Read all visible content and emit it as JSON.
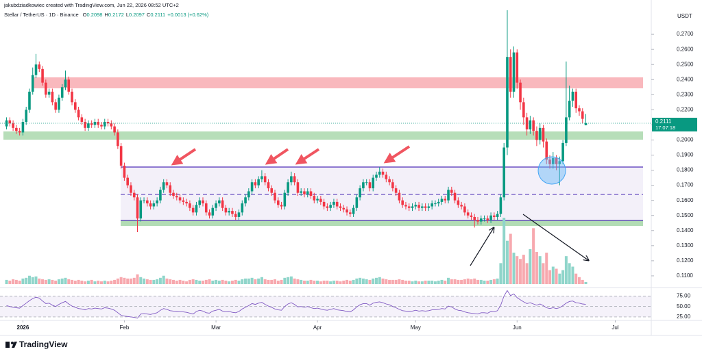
{
  "header": {
    "credit": "jakubdziadkowiec created with TradingView.com, Jun 22, 2026 08:52 UTC+2",
    "symbol": "Stellar / TetherUS · 1D · Binance",
    "ohlc_labels": [
      "O",
      "H",
      "L",
      "C"
    ],
    "change": "+0.0013 (+0.62%)"
  },
  "footer": {
    "brand": "TradingView"
  },
  "chart_data": {
    "type": "candlestick",
    "currency": "USDT",
    "countdown": "17:07:18",
    "up_color": "#089981",
    "down_color": "#f23645",
    "volume_up_color": "#8fd5ca",
    "volume_down_color": "#f7a8ae",
    "rsi_color": "#7e57c2",
    "xlim": [
      -2,
      197
    ],
    "xticks": [
      {
        "value": 5,
        "label": "2026"
      },
      {
        "value": 36,
        "label": "Feb"
      },
      {
        "value": 64,
        "label": "Mar"
      },
      {
        "value": 95,
        "label": "Apr"
      },
      {
        "value": 125,
        "label": "May"
      },
      {
        "value": 156,
        "label": "Jun"
      },
      {
        "value": 186,
        "label": "Jul"
      }
    ],
    "ylim": [
      0.1,
      0.29
    ],
    "yticks": [
      {
        "value": 0.11,
        "label": "0.1100"
      },
      {
        "value": 0.12,
        "label": "0.1200"
      },
      {
        "value": 0.13,
        "label": "0.1300"
      },
      {
        "value": 0.14,
        "label": "0.1400"
      },
      {
        "value": 0.15,
        "label": "0.1500"
      },
      {
        "value": 0.16,
        "label": "0.1600"
      },
      {
        "value": 0.17,
        "label": "0.1700"
      },
      {
        "value": 0.18,
        "label": "0.1800"
      },
      {
        "value": 0.19,
        "label": "0.1900"
      },
      {
        "value": 0.2,
        "label": "0.2000"
      },
      {
        "value": 0.21,
        "label": "0.2100"
      },
      {
        "value": 0.22,
        "label": "0.2200"
      },
      {
        "value": 0.23,
        "label": "0.2300"
      },
      {
        "value": 0.24,
        "label": "0.2400"
      },
      {
        "value": 0.25,
        "label": "0.2500"
      },
      {
        "value": 0.26,
        "label": "0.2600"
      },
      {
        "value": 0.27,
        "label": "0.2700"
      }
    ],
    "rsi_ylim": [
      20,
      92
    ],
    "rsi_ticks": [
      {
        "value": 75,
        "label": "75.00"
      },
      {
        "value": 50,
        "label": "50.00"
      },
      {
        "value": 25,
        "label": "25.00"
      }
    ],
    "open": [
      0.209,
      0.213,
      0.211,
      0.208,
      0.206,
      0.205,
      0.212,
      0.22,
      0.232,
      0.243,
      0.25,
      0.247,
      0.238,
      0.23,
      0.232,
      0.225,
      0.22,
      0.228,
      0.235,
      0.24,
      0.232,
      0.225,
      0.22,
      0.215,
      0.212,
      0.208,
      0.211,
      0.21,
      0.212,
      0.21,
      0.209,
      0.212,
      0.211,
      0.209,
      0.205,
      0.196,
      0.183,
      0.175,
      0.17,
      0.165,
      0.162,
      0.148,
      0.16,
      0.16,
      0.158,
      0.156,
      0.158,
      0.16,
      0.167,
      0.172,
      0.17,
      0.165,
      0.163,
      0.162,
      0.16,
      0.159,
      0.158,
      0.155,
      0.152,
      0.157,
      0.16,
      0.158,
      0.152,
      0.15,
      0.155,
      0.158,
      0.16,
      0.155,
      0.152,
      0.153,
      0.151,
      0.149,
      0.152,
      0.158,
      0.162,
      0.166,
      0.172,
      0.17,
      0.174,
      0.176,
      0.172,
      0.168,
      0.165,
      0.16,
      0.157,
      0.156,
      0.165,
      0.172,
      0.176,
      0.172,
      0.165,
      0.166,
      0.164,
      0.166,
      0.163,
      0.16,
      0.161,
      0.159,
      0.156,
      0.155,
      0.157,
      0.159,
      0.156,
      0.155,
      0.154,
      0.152,
      0.151,
      0.155,
      0.162,
      0.168,
      0.172,
      0.172,
      0.168,
      0.175,
      0.177,
      0.179,
      0.177,
      0.174,
      0.172,
      0.168,
      0.165,
      0.16,
      0.157,
      0.156,
      0.155,
      0.156,
      0.157,
      0.155,
      0.156,
      0.155,
      0.156,
      0.158,
      0.158,
      0.159,
      0.161,
      0.16,
      0.167,
      0.165,
      0.16,
      0.157,
      0.156,
      0.152,
      0.15,
      0.149,
      0.147,
      0.146,
      0.148,
      0.148,
      0.147,
      0.15,
      0.149,
      0.151,
      0.162,
      0.195,
      0.255,
      0.232,
      0.258,
      0.238,
      0.225,
      0.215,
      0.207,
      0.213,
      0.206,
      0.2,
      0.208,
      0.199,
      0.187,
      0.184,
      0.188,
      0.184,
      0.186,
      0.198,
      0.215,
      0.226,
      0.232,
      0.221,
      0.219,
      0.2098
    ],
    "high": [
      0.215,
      0.215,
      0.213,
      0.21,
      0.208,
      0.214,
      0.222,
      0.234,
      0.248,
      0.257,
      0.252,
      0.249,
      0.24,
      0.234,
      0.234,
      0.227,
      0.23,
      0.237,
      0.246,
      0.242,
      0.234,
      0.227,
      0.222,
      0.217,
      0.214,
      0.213,
      0.213,
      0.214,
      0.214,
      0.212,
      0.214,
      0.214,
      0.213,
      0.211,
      0.207,
      0.198,
      0.185,
      0.177,
      0.172,
      0.167,
      0.164,
      0.162,
      0.162,
      0.162,
      0.16,
      0.16,
      0.162,
      0.169,
      0.174,
      0.174,
      0.172,
      0.167,
      0.165,
      0.164,
      0.162,
      0.161,
      0.16,
      0.157,
      0.159,
      0.162,
      0.162,
      0.16,
      0.154,
      0.157,
      0.16,
      0.162,
      0.162,
      0.157,
      0.155,
      0.155,
      0.153,
      0.154,
      0.16,
      0.164,
      0.168,
      0.174,
      0.174,
      0.176,
      0.18,
      0.178,
      0.174,
      0.17,
      0.167,
      0.162,
      0.159,
      0.167,
      0.174,
      0.179,
      0.178,
      0.174,
      0.168,
      0.168,
      0.168,
      0.168,
      0.165,
      0.163,
      0.163,
      0.161,
      0.158,
      0.159,
      0.161,
      0.161,
      0.158,
      0.157,
      0.156,
      0.154,
      0.157,
      0.164,
      0.17,
      0.174,
      0.174,
      0.174,
      0.177,
      0.179,
      0.182,
      0.181,
      0.179,
      0.176,
      0.174,
      0.17,
      0.167,
      0.162,
      0.159,
      0.158,
      0.158,
      0.159,
      0.159,
      0.158,
      0.158,
      0.158,
      0.16,
      0.16,
      0.161,
      0.163,
      0.163,
      0.169,
      0.169,
      0.167,
      0.162,
      0.159,
      0.158,
      0.154,
      0.152,
      0.151,
      0.149,
      0.15,
      0.15,
      0.15,
      0.152,
      0.152,
      0.153,
      0.164,
      0.198,
      0.286,
      0.26,
      0.262,
      0.26,
      0.24,
      0.228,
      0.218,
      0.216,
      0.215,
      0.209,
      0.211,
      0.21,
      0.201,
      0.19,
      0.192,
      0.19,
      0.189,
      0.2,
      0.252,
      0.236,
      0.234,
      0.234,
      0.223,
      0.221,
      0.2172
    ],
    "low": [
      0.207,
      0.209,
      0.206,
      0.204,
      0.203,
      0.203,
      0.21,
      0.218,
      0.23,
      0.241,
      0.245,
      0.236,
      0.228,
      0.228,
      0.223,
      0.218,
      0.218,
      0.226,
      0.233,
      0.23,
      0.223,
      0.218,
      0.213,
      0.21,
      0.206,
      0.206,
      0.208,
      0.208,
      0.208,
      0.207,
      0.207,
      0.209,
      0.207,
      0.203,
      0.194,
      0.181,
      0.173,
      0.168,
      0.163,
      0.16,
      0.139,
      0.146,
      0.158,
      0.156,
      0.154,
      0.154,
      0.156,
      0.158,
      0.165,
      0.168,
      0.163,
      0.161,
      0.16,
      0.158,
      0.157,
      0.156,
      0.153,
      0.15,
      0.15,
      0.155,
      0.156,
      0.15,
      0.148,
      0.148,
      0.153,
      0.156,
      0.153,
      0.15,
      0.15,
      0.149,
      0.147,
      0.147,
      0.15,
      0.156,
      0.16,
      0.164,
      0.168,
      0.168,
      0.172,
      0.17,
      0.166,
      0.163,
      0.158,
      0.155,
      0.154,
      0.154,
      0.163,
      0.17,
      0.17,
      0.163,
      0.163,
      0.162,
      0.162,
      0.161,
      0.158,
      0.158,
      0.157,
      0.154,
      0.153,
      0.153,
      0.155,
      0.154,
      0.153,
      0.152,
      0.15,
      0.149,
      0.149,
      0.153,
      0.16,
      0.166,
      0.17,
      0.166,
      0.166,
      0.173,
      0.175,
      0.175,
      0.172,
      0.17,
      0.166,
      0.163,
      0.158,
      0.155,
      0.154,
      0.153,
      0.153,
      0.154,
      0.153,
      0.153,
      0.153,
      0.153,
      0.154,
      0.156,
      0.156,
      0.157,
      0.158,
      0.158,
      0.163,
      0.158,
      0.155,
      0.154,
      0.15,
      0.148,
      0.147,
      0.142,
      0.144,
      0.144,
      0.146,
      0.145,
      0.145,
      0.147,
      0.147,
      0.149,
      0.16,
      0.19,
      0.228,
      0.228,
      0.234,
      0.22,
      0.21,
      0.203,
      0.204,
      0.203,
      0.196,
      0.197,
      0.195,
      0.184,
      0.181,
      0.181,
      0.18,
      0.17,
      0.184,
      0.196,
      0.213,
      0.222,
      0.218,
      0.216,
      0.211,
      0.2097
    ],
    "close": [
      0.213,
      0.211,
      0.208,
      0.206,
      0.205,
      0.212,
      0.22,
      0.232,
      0.243,
      0.25,
      0.247,
      0.238,
      0.23,
      0.232,
      0.225,
      0.22,
      0.228,
      0.235,
      0.24,
      0.232,
      0.225,
      0.22,
      0.215,
      0.212,
      0.208,
      0.211,
      0.21,
      0.212,
      0.21,
      0.209,
      0.212,
      0.211,
      0.209,
      0.205,
      0.196,
      0.183,
      0.175,
      0.17,
      0.165,
      0.162,
      0.148,
      0.16,
      0.16,
      0.158,
      0.156,
      0.158,
      0.16,
      0.167,
      0.172,
      0.17,
      0.165,
      0.163,
      0.162,
      0.16,
      0.159,
      0.158,
      0.155,
      0.152,
      0.157,
      0.16,
      0.158,
      0.152,
      0.15,
      0.155,
      0.158,
      0.16,
      0.155,
      0.152,
      0.153,
      0.151,
      0.149,
      0.152,
      0.158,
      0.162,
      0.166,
      0.172,
      0.17,
      0.174,
      0.176,
      0.172,
      0.168,
      0.165,
      0.16,
      0.157,
      0.156,
      0.165,
      0.172,
      0.176,
      0.172,
      0.165,
      0.166,
      0.164,
      0.166,
      0.163,
      0.16,
      0.161,
      0.159,
      0.156,
      0.155,
      0.157,
      0.159,
      0.156,
      0.155,
      0.154,
      0.152,
      0.151,
      0.155,
      0.162,
      0.168,
      0.172,
      0.172,
      0.168,
      0.175,
      0.177,
      0.179,
      0.177,
      0.174,
      0.172,
      0.168,
      0.165,
      0.16,
      0.157,
      0.156,
      0.155,
      0.156,
      0.157,
      0.155,
      0.156,
      0.155,
      0.156,
      0.158,
      0.158,
      0.159,
      0.161,
      0.16,
      0.167,
      0.165,
      0.16,
      0.157,
      0.156,
      0.152,
      0.15,
      0.149,
      0.147,
      0.146,
      0.148,
      0.148,
      0.147,
      0.15,
      0.149,
      0.151,
      0.162,
      0.195,
      0.255,
      0.232,
      0.258,
      0.238,
      0.225,
      0.215,
      0.207,
      0.213,
      0.206,
      0.2,
      0.208,
      0.199,
      0.187,
      0.184,
      0.188,
      0.184,
      0.186,
      0.198,
      0.215,
      0.226,
      0.232,
      0.221,
      0.219,
      0.214,
      0.2111
    ],
    "volume": [
      6,
      5,
      7,
      6,
      5,
      8,
      9,
      12,
      10,
      11,
      8,
      7,
      6,
      7,
      6,
      5,
      7,
      8,
      9,
      7,
      6,
      5,
      6,
      5,
      4,
      5,
      6,
      4,
      5,
      4,
      5,
      4,
      5,
      6,
      8,
      10,
      9,
      8,
      8,
      9,
      14,
      10,
      8,
      7,
      6,
      6,
      7,
      9,
      12,
      8,
      7,
      6,
      5,
      6,
      5,
      4,
      6,
      7,
      6,
      5,
      5,
      6,
      7,
      5,
      6,
      5,
      6,
      5,
      4,
      5,
      6,
      5,
      7,
      8,
      8,
      9,
      7,
      8,
      10,
      7,
      6,
      6,
      7,
      5,
      6,
      9,
      10,
      11,
      8,
      7,
      6,
      5,
      5,
      6,
      5,
      5,
      4,
      5,
      5,
      4,
      5,
      5,
      4,
      5,
      6,
      5,
      6,
      8,
      9,
      8,
      7,
      6,
      8,
      9,
      10,
      8,
      7,
      6,
      6,
      6,
      7,
      6,
      5,
      5,
      4,
      5,
      4,
      4,
      5,
      5,
      5,
      4,
      5,
      6,
      5,
      9,
      7,
      7,
      6,
      6,
      7,
      8,
      7,
      8,
      6,
      6,
      5,
      5,
      6,
      7,
      8,
      30,
      95,
      62,
      72,
      45,
      40,
      36,
      42,
      30,
      50,
      80,
      46,
      40,
      30,
      45,
      20,
      25,
      22,
      15,
      20,
      40,
      30,
      25,
      15,
      10,
      6,
      3
    ],
    "rsi": [
      52,
      50,
      48,
      47,
      46,
      52,
      58,
      64,
      69,
      72,
      70,
      63,
      57,
      58,
      53,
      50,
      55,
      59,
      62,
      56,
      51,
      48,
      45,
      44,
      42,
      45,
      44,
      46,
      45,
      44,
      47,
      46,
      44,
      41,
      35,
      29,
      27,
      26,
      25,
      24,
      22,
      32,
      33,
      32,
      31,
      33,
      35,
      41,
      45,
      43,
      40,
      39,
      38,
      37,
      37,
      36,
      34,
      32,
      38,
      41,
      39,
      35,
      34,
      39,
      41,
      43,
      39,
      37,
      38,
      36,
      35,
      38,
      44,
      48,
      52,
      57,
      55,
      58,
      60,
      55,
      51,
      48,
      44,
      42,
      41,
      50,
      56,
      59,
      55,
      49,
      50,
      48,
      50,
      47,
      45,
      46,
      44,
      42,
      41,
      43,
      45,
      42,
      41,
      40,
      38,
      37,
      42,
      49,
      54,
      57,
      57,
      53,
      58,
      60,
      61,
      59,
      56,
      54,
      50,
      47,
      43,
      40,
      39,
      38,
      39,
      41,
      39,
      40,
      39,
      40,
      42,
      42,
      43,
      45,
      44,
      51,
      49,
      44,
      41,
      40,
      37,
      35,
      34,
      33,
      32,
      35,
      35,
      34,
      38,
      37,
      40,
      53,
      75,
      88,
      76,
      80,
      71,
      66,
      61,
      57,
      59,
      56,
      53,
      56,
      52,
      47,
      45,
      47,
      45,
      47,
      52,
      58,
      62,
      63,
      59,
      58,
      56,
      55
    ]
  }
}
